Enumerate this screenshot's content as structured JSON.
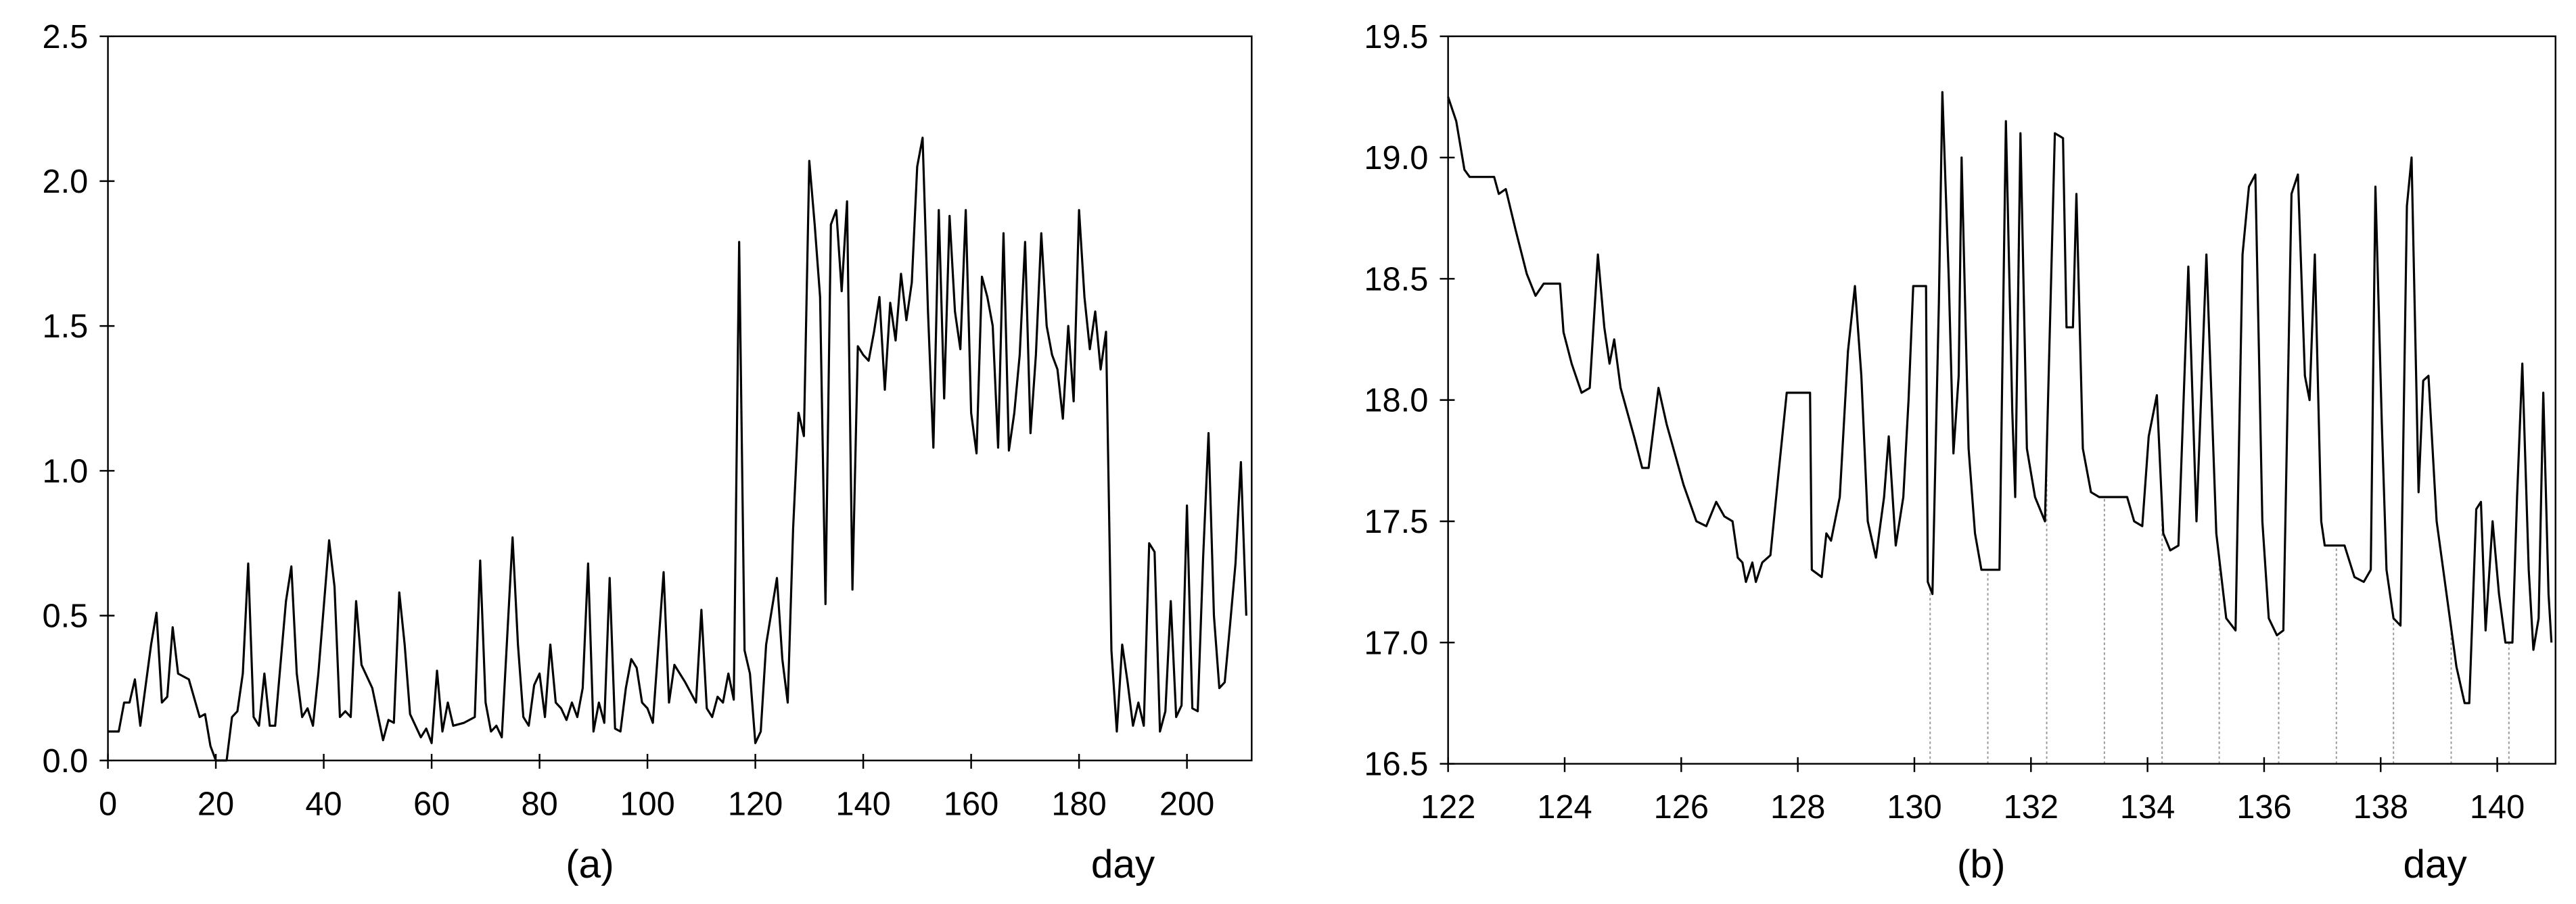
{
  "chart_data": [
    {
      "type": "line",
      "caption": "(a)",
      "x_label": "day",
      "color": "#000000",
      "xlim": [
        0,
        212
      ],
      "ylim": [
        0,
        2.5
      ],
      "xticks": [
        0,
        20,
        40,
        60,
        80,
        100,
        120,
        140,
        160,
        180,
        200
      ],
      "yticks": [
        {
          "value": 0,
          "label": "0.0"
        },
        0.5,
        {
          "value": 1,
          "label": "1.0"
        },
        1.5,
        {
          "value": 2,
          "label": "2.0"
        },
        2.5
      ],
      "x": [
        0,
        2,
        3,
        4,
        5,
        6,
        8,
        9,
        10,
        11,
        12,
        13,
        15,
        17,
        18,
        19,
        20,
        22,
        23,
        24,
        25,
        26,
        27,
        28,
        29,
        30,
        31,
        33,
        34,
        35,
        36,
        37,
        38,
        39,
        41,
        42,
        43,
        44,
        45,
        46,
        47,
        49,
        51,
        52,
        53,
        54,
        55,
        56,
        58,
        59,
        60,
        61,
        62,
        63,
        64,
        66,
        68,
        69,
        70,
        71,
        72,
        73,
        75,
        76,
        77,
        78,
        79,
        80,
        81,
        82,
        83,
        84,
        85,
        86,
        87,
        88,
        89,
        90,
        91,
        92,
        93,
        94,
        95,
        96,
        97,
        98,
        99,
        100,
        101,
        103,
        104,
        105,
        107,
        109,
        110,
        111,
        112,
        113,
        114,
        115,
        116,
        117,
        118,
        119,
        120,
        121,
        122,
        124,
        125,
        126,
        127,
        128,
        129,
        130,
        131,
        132,
        133,
        134,
        135,
        136,
        137,
        138,
        139,
        140,
        141,
        142,
        143,
        144,
        145,
        146,
        147,
        148,
        149,
        150,
        151,
        152,
        153,
        154,
        155,
        156,
        157,
        158,
        159,
        160,
        161,
        162,
        163,
        164,
        165,
        166,
        167,
        168,
        169,
        170,
        171,
        172,
        173,
        174,
        175,
        176,
        177,
        178,
        179,
        180,
        181,
        182,
        183,
        184,
        185,
        186,
        187,
        188,
        189,
        190,
        191,
        192,
        193,
        194,
        195,
        196,
        197,
        198,
        199,
        200,
        201,
        202,
        203,
        204,
        205,
        206,
        207,
        208,
        209,
        210,
        211
      ],
      "values": [
        0.1,
        0.1,
        0.2,
        0.2,
        0.28,
        0.12,
        0.4,
        0.51,
        0.2,
        0.22,
        0.46,
        0.3,
        0.28,
        0.15,
        0.16,
        0.05,
        0,
        0,
        0.15,
        0.17,
        0.3,
        0.68,
        0.15,
        0.12,
        0.3,
        0.12,
        0.12,
        0.55,
        0.67,
        0.3,
        0.15,
        0.18,
        0.12,
        0.3,
        0.76,
        0.6,
        0.15,
        0.17,
        0.15,
        0.55,
        0.33,
        0.25,
        0.07,
        0.14,
        0.13,
        0.58,
        0.4,
        0.16,
        0.08,
        0.11,
        0.06,
        0.31,
        0.1,
        0.2,
        0.12,
        0.13,
        0.15,
        0.69,
        0.2,
        0.1,
        0.12,
        0.08,
        0.77,
        0.4,
        0.15,
        0.12,
        0.26,
        0.3,
        0.15,
        0.4,
        0.2,
        0.18,
        0.14,
        0.2,
        0.15,
        0.25,
        0.68,
        0.1,
        0.2,
        0.13,
        0.63,
        0.11,
        0.1,
        0.25,
        0.35,
        0.32,
        0.2,
        0.18,
        0.13,
        0.65,
        0.2,
        0.33,
        0.27,
        0.2,
        0.52,
        0.18,
        0.15,
        0.22,
        0.2,
        0.3,
        0.21,
        1.79,
        0.38,
        0.3,
        0.06,
        0.1,
        0.4,
        0.63,
        0.35,
        0.2,
        0.8,
        1.2,
        1.12,
        2.07,
        1.85,
        1.6,
        0.54,
        1.85,
        1.9,
        1.62,
        1.93,
        0.59,
        1.43,
        1.4,
        1.38,
        1.48,
        1.6,
        1.28,
        1.58,
        1.45,
        1.68,
        1.52,
        1.65,
        2.05,
        2.15,
        1.55,
        1.08,
        1.9,
        1.25,
        1.88,
        1.55,
        1.42,
        1.9,
        1.2,
        1.06,
        1.67,
        1.6,
        1.5,
        1.08,
        1.82,
        1.07,
        1.2,
        1.4,
        1.79,
        1.13,
        1.4,
        1.82,
        1.5,
        1.4,
        1.35,
        1.18,
        1.5,
        1.24,
        1.9,
        1.6,
        1.42,
        1.55,
        1.35,
        1.48,
        0.38,
        0.1,
        0.4,
        0.27,
        0.12,
        0.2,
        0.12,
        0.75,
        0.72,
        0.1,
        0.17,
        0.55,
        0.15,
        0.19,
        0.88,
        0.18,
        0.17,
        0.7,
        1.13,
        0.5,
        0.25,
        0.27,
        0.47,
        0.68,
        1.03,
        0.5
      ]
    },
    {
      "type": "line",
      "caption": "(b)",
      "x_label": "day",
      "color": "#000000",
      "xlim": [
        122,
        141
      ],
      "ylim": [
        16.5,
        19.5
      ],
      "xticks": [
        122,
        124,
        126,
        128,
        130,
        132,
        134,
        136,
        138,
        140
      ],
      "yticks": [
        16.5,
        {
          "value": 17,
          "label": "17.0"
        },
        17.5,
        {
          "value": 18,
          "label": "18.0"
        },
        18.5,
        {
          "value": 19,
          "label": "19.0"
        },
        19.5
      ],
      "x": [
        122.0,
        122.14,
        122.28,
        122.37,
        122.79,
        122.87,
        122.99,
        123.16,
        123.35,
        123.5,
        123.64,
        123.92,
        123.98,
        124.12,
        124.29,
        124.43,
        124.57,
        124.68,
        124.77,
        124.85,
        124.96,
        125.19,
        125.33,
        125.44,
        125.61,
        125.75,
        126.04,
        126.26,
        126.43,
        126.6,
        126.74,
        126.88,
        126.97,
        127.05,
        127.11,
        127.22,
        127.28,
        127.39,
        127.53,
        127.67,
        127.81,
        128.21,
        128.24,
        128.41,
        128.49,
        128.57,
        128.72,
        128.86,
        128.98,
        129.09,
        129.2,
        129.34,
        129.48,
        129.56,
        129.68,
        129.81,
        129.9,
        129.98,
        130.2,
        130.23,
        130.31,
        130.42,
        130.48,
        130.59,
        130.67,
        130.76,
        130.81,
        130.93,
        131.04,
        131.15,
        131.46,
        131.57,
        131.68,
        131.73,
        131.82,
        131.93,
        132.07,
        132.24,
        132.41,
        132.55,
        132.61,
        132.72,
        132.78,
        132.89,
        133.03,
        133.17,
        133.65,
        133.77,
        133.91,
        134.02,
        134.16,
        134.27,
        134.39,
        134.53,
        134.7,
        134.84,
        135.01,
        135.18,
        135.35,
        135.51,
        135.63,
        135.74,
        135.85,
        135.97,
        136.08,
        136.22,
        136.33,
        136.47,
        136.58,
        136.7,
        136.78,
        136.87,
        136.98,
        137.04,
        137.38,
        137.55,
        137.71,
        137.83,
        137.91,
        138.02,
        138.1,
        138.22,
        138.34,
        138.45,
        138.53,
        138.65,
        138.73,
        138.82,
        138.96,
        139.13,
        139.3,
        139.44,
        139.52,
        139.64,
        139.72,
        139.8,
        139.92,
        140.03,
        140.14,
        140.26,
        140.34,
        140.43,
        140.54,
        140.62,
        140.71,
        140.79,
        140.88,
        140.93
      ],
      "values": [
        19.25,
        19.15,
        18.95,
        18.92,
        18.92,
        18.85,
        18.87,
        18.7,
        18.52,
        18.43,
        18.48,
        18.48,
        18.28,
        18.15,
        18.03,
        18.05,
        18.6,
        18.3,
        18.15,
        18.25,
        18.05,
        17.85,
        17.72,
        17.72,
        18.05,
        17.9,
        17.65,
        17.5,
        17.48,
        17.58,
        17.52,
        17.5,
        17.35,
        17.33,
        17.25,
        17.33,
        17.25,
        17.33,
        17.36,
        17.7,
        18.03,
        18.03,
        17.3,
        17.27,
        17.45,
        17.42,
        17.6,
        18.2,
        18.47,
        18.1,
        17.5,
        17.35,
        17.6,
        17.85,
        17.4,
        17.6,
        18.0,
        18.47,
        18.47,
        17.25,
        17.2,
        18.4,
        19.27,
        18.5,
        17.78,
        18.1,
        19.0,
        17.8,
        17.45,
        17.3,
        17.3,
        19.15,
        17.95,
        17.6,
        19.1,
        17.8,
        17.6,
        17.5,
        19.1,
        19.08,
        18.3,
        18.3,
        18.85,
        17.8,
        17.62,
        17.6,
        17.6,
        17.5,
        17.48,
        17.85,
        18.02,
        17.45,
        17.38,
        17.4,
        18.55,
        17.5,
        18.6,
        17.45,
        17.1,
        17.05,
        18.6,
        18.88,
        18.93,
        17.5,
        17.1,
        17.03,
        17.05,
        18.85,
        18.93,
        18.1,
        18.0,
        18.6,
        17.5,
        17.4,
        17.4,
        17.27,
        17.25,
        17.3,
        18.88,
        17.9,
        17.3,
        17.1,
        17.07,
        18.8,
        19.0,
        17.62,
        18.08,
        18.1,
        17.5,
        17.2,
        16.9,
        16.75,
        16.75,
        17.55,
        17.58,
        17.05,
        17.5,
        17.2,
        17.0,
        17.0,
        17.6,
        18.15,
        17.3,
        16.97,
        17.1,
        18.03,
        17.2,
        17.0
      ],
      "reference_lines": [
        130.27,
        131.26,
        132.27,
        133.26,
        134.25,
        135.23,
        136.25,
        137.24,
        138.22,
        139.21,
        140.2
      ]
    }
  ]
}
